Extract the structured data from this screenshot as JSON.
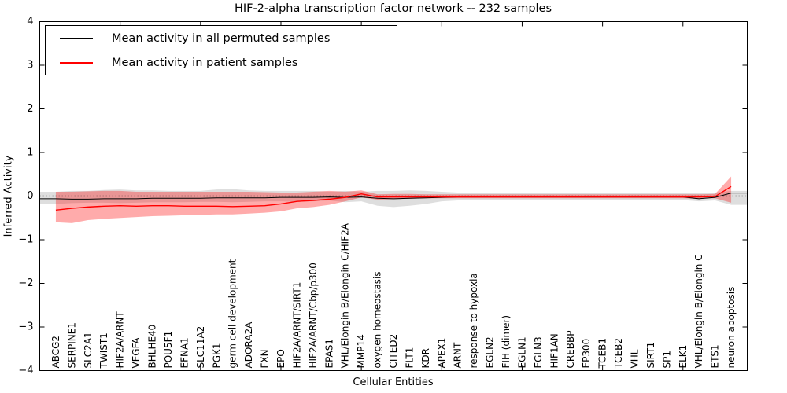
{
  "chart_data": {
    "type": "line",
    "title": "HIF-2-alpha transcription factor network -- 232 samples",
    "xlabel": "Cellular Entities",
    "ylabel": "Inferred Activity",
    "xlim": [
      0,
      44
    ],
    "ylim": [
      -4,
      4
    ],
    "yticks": [
      -4,
      -3,
      -2,
      -1,
      0,
      1,
      2,
      3,
      4
    ],
    "xticks": [
      5,
      10,
      15,
      20,
      25,
      30,
      35,
      40
    ],
    "grid": false,
    "legend_position": "upper left",
    "zero_line": {
      "value": 0,
      "style": "dotted",
      "color": "#000000"
    },
    "categories": [
      "ABCG2",
      "SERPINE1",
      "SLC2A1",
      "TWIST1",
      "HIF2A/ARNT",
      "VEGFA",
      "BHLHE40",
      "POU5F1",
      "EFNA1",
      "SLC11A2",
      "PGK1",
      "germ cell development",
      "ADORA2A",
      "FXN",
      "EPO",
      "HIF2A/ARNT/SIRT1",
      "HIF2A/ARNT/Cbp/p300",
      "EPAS1",
      "VHL/Elongin B/Elongin C/HIF2A",
      "MMP14",
      "oxygen homeostasis",
      "CITED2",
      "FLT1",
      "KDR",
      "APEX1",
      "ARNT",
      "response to hypoxia",
      "EGLN2",
      "FIH (dimer)",
      "EGLN1",
      "EGLN3",
      "HIF1AN",
      "CREBBP",
      "EP300",
      "TCEB1",
      "TCEB2",
      "VHL",
      "SIRT1",
      "SP1",
      "ELK1",
      "VHL/Elongin B/Elongin C",
      "ETS1",
      "neuron apoptosis"
    ],
    "series": [
      {
        "name": "Mean activity in all permuted samples",
        "line_color": "#000000",
        "line_width": 1.0,
        "band_color": "#999999",
        "band_opacity": 0.32,
        "extend_to_axes": true,
        "mean": [
          -0.06,
          -0.07,
          -0.07,
          -0.06,
          -0.06,
          -0.06,
          -0.05,
          -0.05,
          -0.05,
          -0.05,
          -0.04,
          -0.04,
          -0.04,
          -0.04,
          -0.03,
          -0.03,
          -0.03,
          -0.02,
          -0.03,
          -0.02,
          -0.05,
          -0.06,
          -0.05,
          -0.04,
          -0.03,
          -0.02,
          -0.02,
          -0.02,
          -0.02,
          -0.02,
          -0.02,
          -0.02,
          -0.02,
          -0.02,
          -0.02,
          -0.02,
          -0.02,
          -0.02,
          -0.02,
          -0.02,
          -0.06,
          -0.03,
          0.07
        ],
        "band_upper": [
          0.1,
          0.12,
          0.12,
          0.14,
          0.15,
          0.13,
          0.13,
          0.12,
          0.12,
          0.12,
          0.15,
          0.16,
          0.13,
          0.12,
          0.12,
          0.12,
          0.12,
          0.1,
          0.12,
          0.1,
          0.12,
          0.12,
          0.13,
          0.12,
          0.1,
          0.08,
          0.08,
          0.08,
          0.08,
          0.08,
          0.08,
          0.08,
          0.07,
          0.07,
          0.07,
          0.07,
          0.07,
          0.07,
          0.07,
          0.07,
          0.07,
          0.08,
          0.12
        ],
        "band_lower": [
          -0.18,
          -0.16,
          -0.15,
          -0.15,
          -0.16,
          -0.15,
          -0.14,
          -0.14,
          -0.14,
          -0.13,
          -0.13,
          -0.14,
          -0.13,
          -0.12,
          -0.12,
          -0.13,
          -0.12,
          -0.1,
          -0.14,
          -0.12,
          -0.22,
          -0.25,
          -0.22,
          -0.18,
          -0.12,
          -0.1,
          -0.1,
          -0.09,
          -0.09,
          -0.09,
          -0.08,
          -0.08,
          -0.08,
          -0.08,
          -0.08,
          -0.08,
          -0.08,
          -0.08,
          -0.08,
          -0.09,
          -0.12,
          -0.1,
          -0.2
        ]
      },
      {
        "name": "Mean activity in patient samples",
        "line_color": "#ff0000",
        "line_width": 1.4,
        "band_color": "#ff0000",
        "band_opacity": 0.33,
        "extend_to_axes": false,
        "mean": [
          -0.32,
          -0.28,
          -0.25,
          -0.23,
          -0.22,
          -0.23,
          -0.22,
          -0.22,
          -0.23,
          -0.23,
          -0.23,
          -0.24,
          -0.23,
          -0.22,
          -0.18,
          -0.12,
          -0.1,
          -0.07,
          -0.03,
          0.05,
          -0.02,
          -0.02,
          -0.02,
          -0.02,
          -0.02,
          -0.02,
          -0.02,
          -0.02,
          -0.02,
          -0.02,
          -0.02,
          -0.02,
          -0.02,
          -0.02,
          -0.02,
          -0.02,
          -0.02,
          -0.02,
          -0.02,
          -0.02,
          -0.02,
          -0.01,
          0.22
        ],
        "band_upper": [
          0.1,
          0.1,
          0.11,
          0.12,
          0.12,
          0.1,
          0.1,
          0.1,
          0.1,
          0.1,
          0.1,
          0.1,
          0.1,
          0.09,
          0.08,
          0.08,
          0.1,
          0.12,
          0.1,
          0.13,
          0.04,
          0.05,
          0.05,
          0.04,
          0.04,
          0.04,
          0.04,
          0.04,
          0.04,
          0.04,
          0.04,
          0.04,
          0.04,
          0.04,
          0.04,
          0.04,
          0.04,
          0.04,
          0.04,
          0.04,
          0.04,
          0.05,
          0.45
        ],
        "band_lower": [
          -0.6,
          -0.62,
          -0.55,
          -0.52,
          -0.5,
          -0.48,
          -0.46,
          -0.45,
          -0.44,
          -0.43,
          -0.42,
          -0.42,
          -0.4,
          -0.38,
          -0.35,
          -0.28,
          -0.25,
          -0.2,
          -0.12,
          -0.03,
          -0.08,
          -0.07,
          -0.06,
          -0.05,
          -0.05,
          -0.05,
          -0.05,
          -0.05,
          -0.05,
          -0.05,
          -0.05,
          -0.05,
          -0.05,
          -0.05,
          -0.05,
          -0.05,
          -0.05,
          -0.05,
          -0.05,
          -0.05,
          -0.06,
          -0.05,
          -0.15
        ]
      }
    ]
  }
}
